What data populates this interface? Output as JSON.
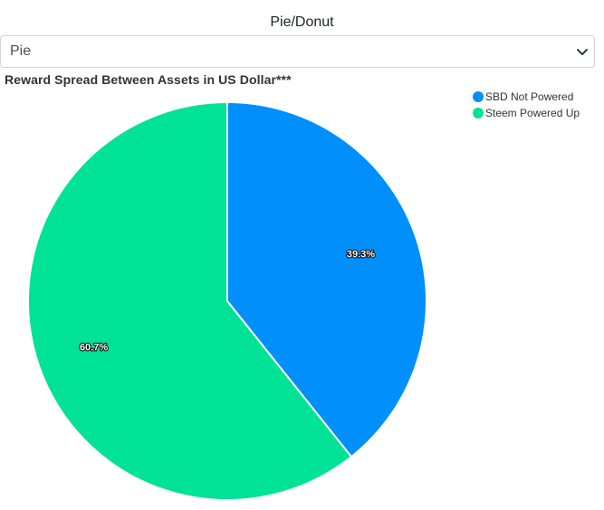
{
  "chart_type_selector": {
    "label": "Pie/Donut",
    "selected": "Pie"
  },
  "chart_data": {
    "type": "pie",
    "title": "Reward Spread Between Assets in US Dollar***",
    "series": [
      {
        "name": "SBD Not Powered",
        "value": 39.3,
        "label": "39.3%",
        "color": "#008ffb"
      },
      {
        "name": "Steem Powered Up",
        "value": 60.7,
        "label": "60.7%",
        "color": "#00e396"
      }
    ],
    "legend_position": "top-right"
  }
}
